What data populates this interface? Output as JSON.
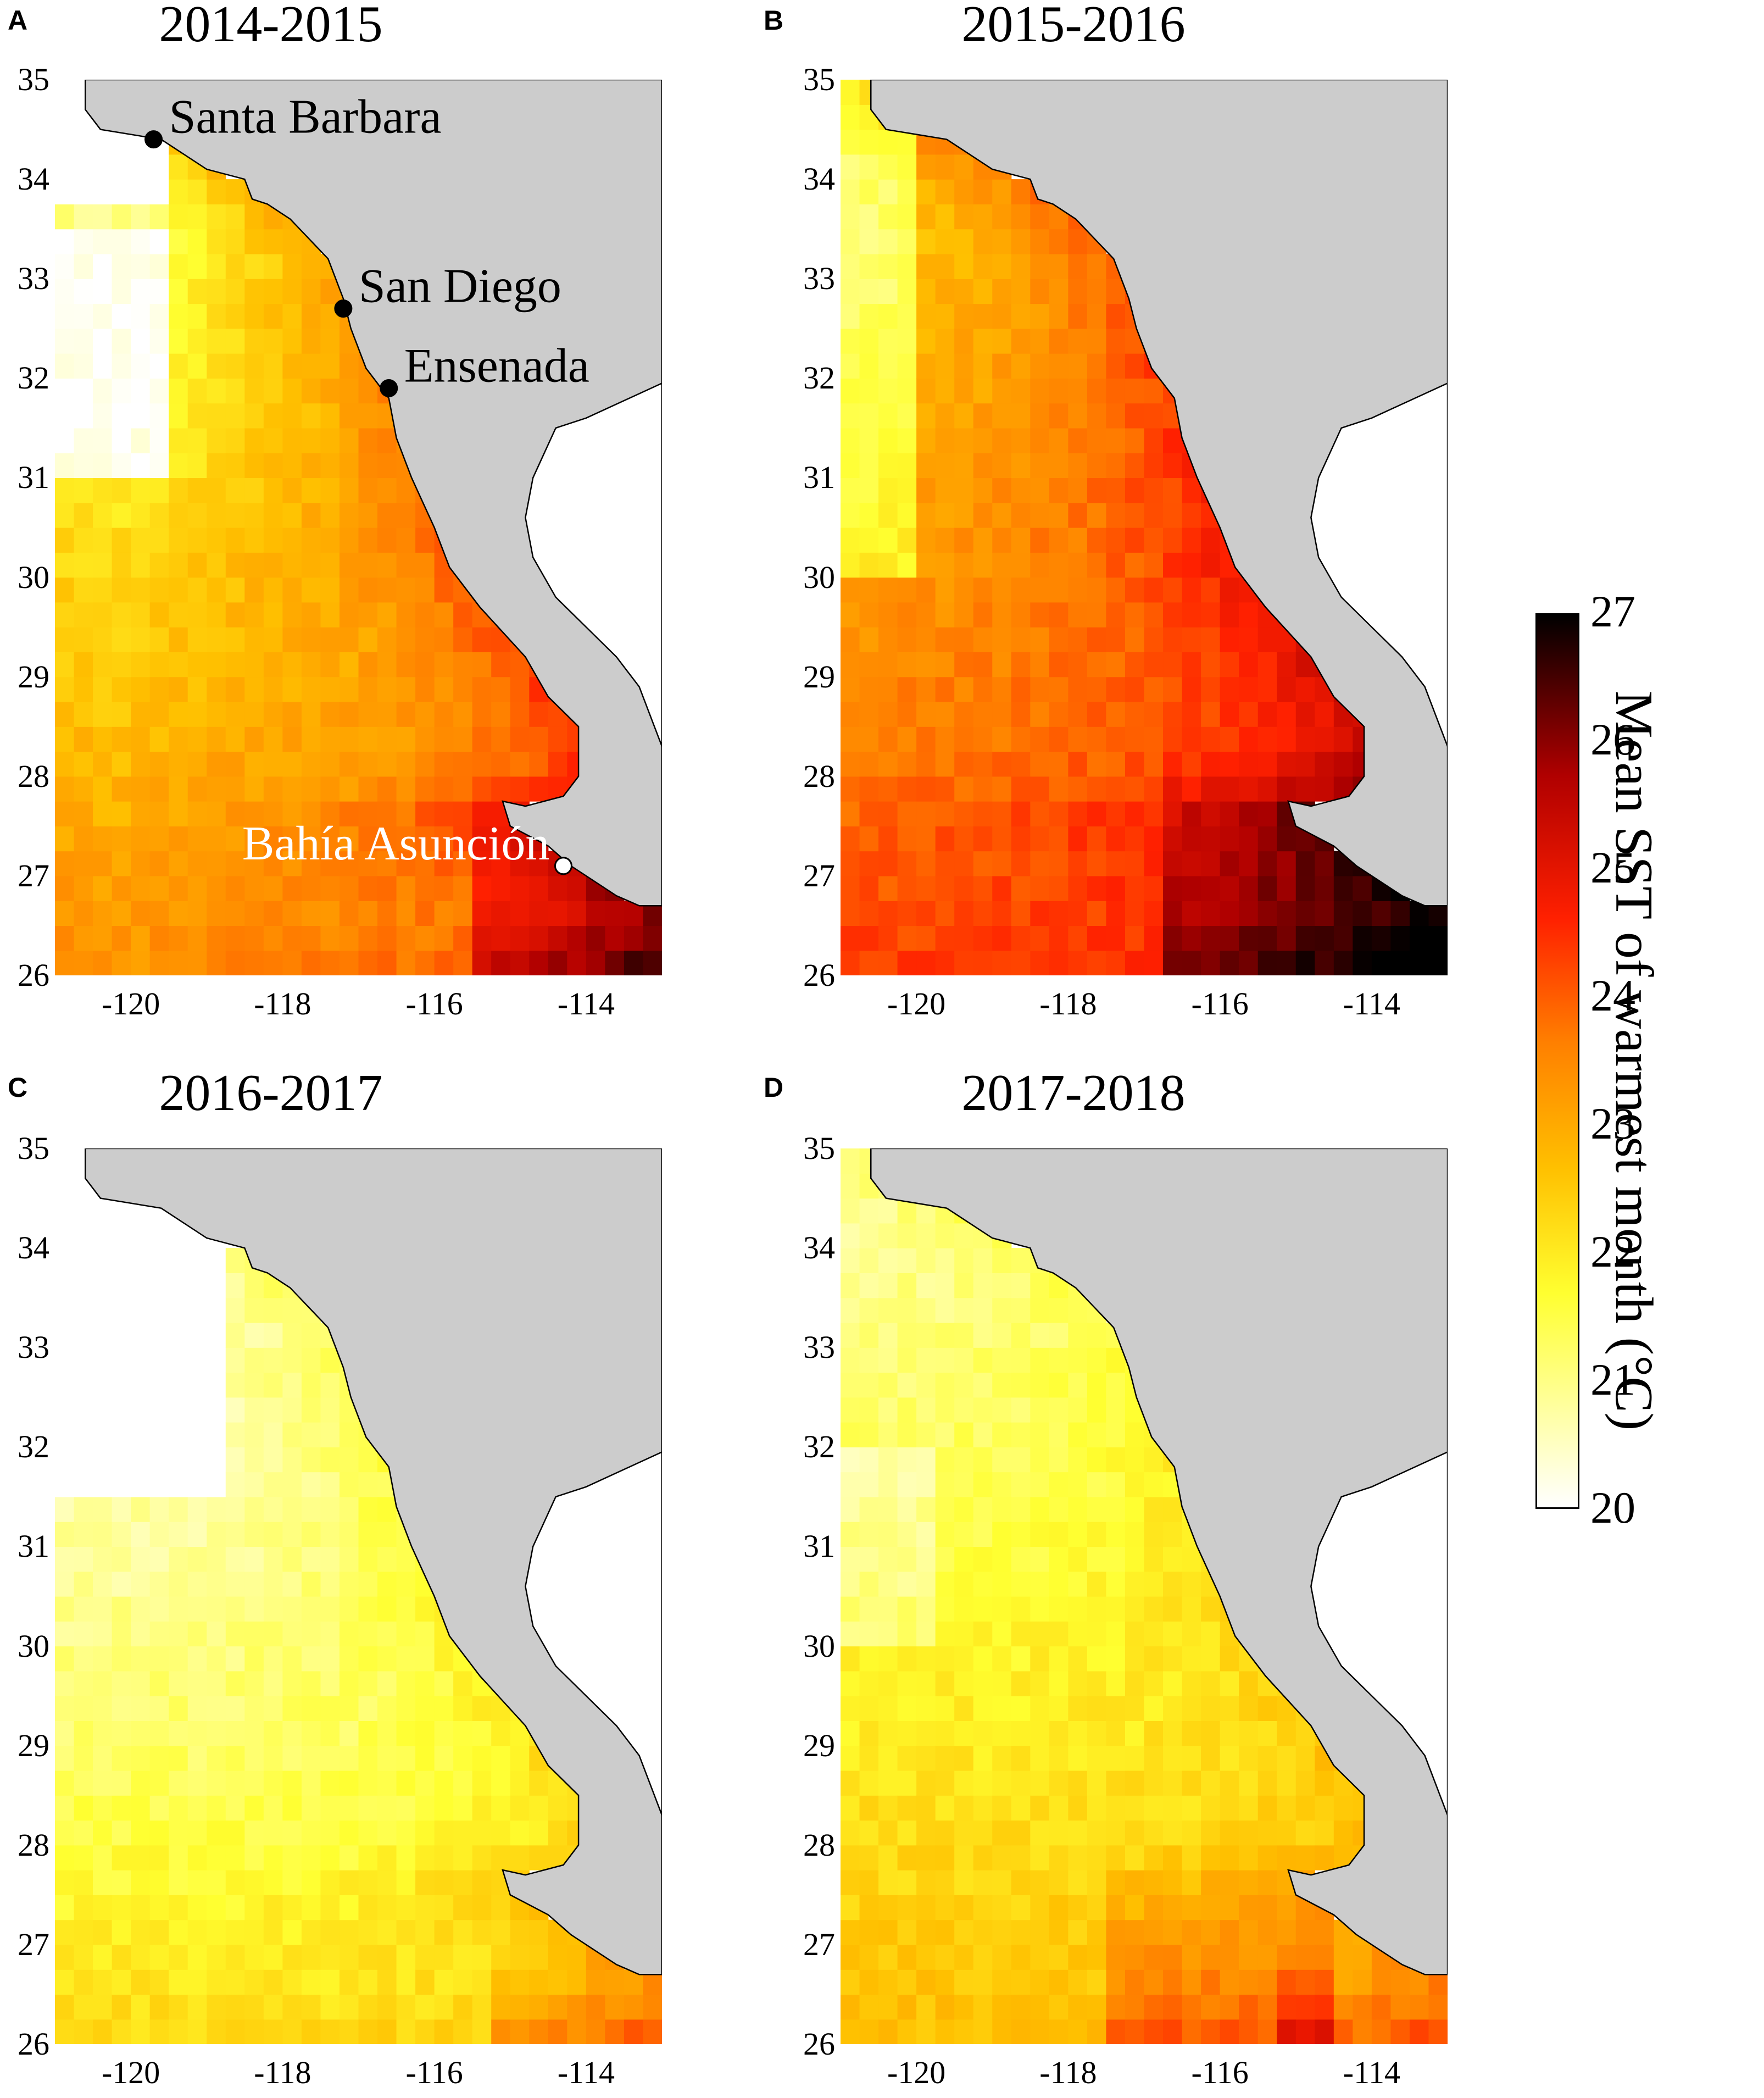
{
  "figure": {
    "panels": [
      {
        "letter": "A",
        "title": "2014-2015",
        "scenario": "warm"
      },
      {
        "letter": "B",
        "title": "2015-2016",
        "scenario": "hot"
      },
      {
        "letter": "C",
        "title": "2016-2017",
        "scenario": "cool"
      },
      {
        "letter": "D",
        "title": "2017-2018",
        "scenario": "mild"
      }
    ],
    "y_ticks": [
      "35",
      "34",
      "33",
      "32",
      "31",
      "30",
      "29",
      "28",
      "27",
      "26"
    ],
    "x_ticks": [
      "-120",
      "-118",
      "-116",
      "-114"
    ],
    "locations": [
      {
        "name": "Santa Barbara",
        "lon": -119.7,
        "lat": 34.4,
        "marker_color": "#000000",
        "label_color": "#000000"
      },
      {
        "name": "San Diego",
        "lon": -117.2,
        "lat": 32.7,
        "marker_color": "#000000",
        "label_color": "#000000"
      },
      {
        "name": "Ensenada",
        "lon": -116.6,
        "lat": 31.9,
        "marker_color": "#000000",
        "label_color": "#000000"
      },
      {
        "name": "Bahía Asunción",
        "lon": -114.3,
        "lat": 27.1,
        "marker_color": "#ffffff",
        "label_color": "#ffffff"
      }
    ],
    "colorbar": {
      "label": "Mean SST of warmest month (°C)",
      "ticks": [
        "27",
        "26",
        "25",
        "24",
        "23",
        "22",
        "21",
        "20"
      ],
      "range": [
        20,
        27
      ],
      "colormap": "hot (white → yellow → orange → red → black)"
    },
    "colors": {
      "land": "#cccccc",
      "gulf_water": "#ffffff",
      "coastline": "#000000"
    },
    "extent": {
      "lon": [
        -121,
        -113
      ],
      "lat": [
        26,
        35
      ]
    }
  }
}
